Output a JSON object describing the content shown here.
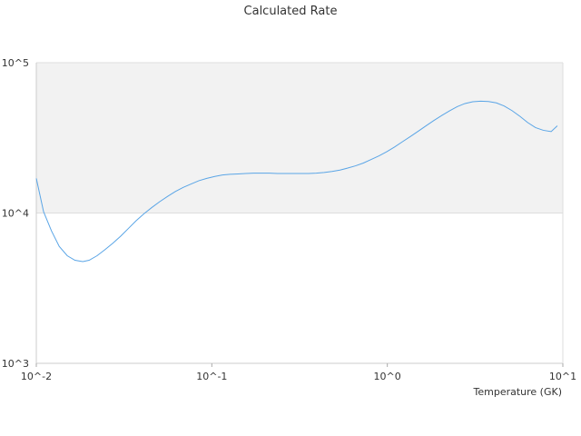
{
  "chart_data": {
    "type": "line",
    "title": "Calculated Rate",
    "xlabel": "Temperature (GK)",
    "ylabel": "",
    "xscale": "log",
    "yscale": "log",
    "xlim": [
      0.01,
      10
    ],
    "ylim": [
      1000,
      100000
    ],
    "x_tick_labels": [
      "10^-2",
      "10^-1",
      "10^0",
      "10^1"
    ],
    "y_tick_labels": [
      "10^3",
      "10^4",
      "10^5"
    ],
    "grid": true,
    "band_colors": [
      "#f2f2f2",
      "#ffffff"
    ],
    "line_color": "#5aa5e6",
    "series": [
      {
        "x": [
          0.01,
          0.011,
          0.0122,
          0.0135,
          0.015,
          0.0166,
          0.0184,
          0.02,
          0.0222,
          0.0246,
          0.0273,
          0.0302,
          0.0335,
          0.0371,
          0.0411,
          0.0456,
          0.0505,
          0.056,
          0.062,
          0.0687,
          0.0762,
          0.0844,
          0.0936,
          0.104,
          0.115,
          0.127,
          0.141,
          0.156,
          0.173,
          0.192,
          0.213,
          0.236,
          0.261,
          0.29,
          0.321,
          0.356,
          0.394,
          0.437,
          0.484,
          0.537,
          0.595,
          0.659,
          0.73,
          0.809,
          0.897,
          0.994,
          1.1,
          1.22,
          1.35,
          1.5,
          1.66,
          1.84,
          2.04,
          2.26,
          2.5,
          2.77,
          3.07,
          3.4,
          3.77,
          4.18,
          4.63,
          5.13,
          5.69,
          6.3,
          6.98,
          7.74,
          8.58,
          9.3
        ],
        "y": [
          17000,
          10200,
          7600,
          6000,
          5200,
          4850,
          4750,
          4850,
          5200,
          5700,
          6300,
          7000,
          7900,
          8900,
          9900,
          10900,
          11900,
          12900,
          13900,
          14800,
          15600,
          16400,
          17000,
          17500,
          17900,
          18100,
          18200,
          18300,
          18400,
          18400,
          18400,
          18300,
          18300,
          18300,
          18300,
          18300,
          18400,
          18600,
          18900,
          19300,
          19900,
          20600,
          21500,
          22700,
          24000,
          25600,
          27500,
          29800,
          32200,
          35000,
          38000,
          41200,
          44500,
          47800,
          51000,
          53500,
          55000,
          55500,
          55200,
          54000,
          51500,
          48000,
          44000,
          40000,
          37000,
          35500,
          34800,
          38000
        ]
      }
    ]
  }
}
